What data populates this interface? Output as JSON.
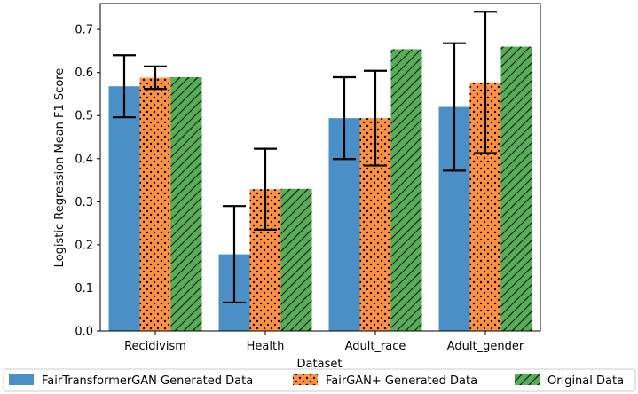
{
  "chart_data": {
    "type": "bar",
    "xlabel": "Dataset",
    "ylabel": "Logistic Regression Mean F1 Score",
    "ylim": [
      0,
      0.76
    ],
    "yticks": [
      "0.0",
      "0.1",
      "0.2",
      "0.3",
      "0.4",
      "0.5",
      "0.6",
      "0.7"
    ],
    "categories": [
      "Recidivism",
      "Health",
      "Adult_race",
      "Adult_gender"
    ],
    "legend_position": "bottom",
    "series": [
      {
        "name": "FairTransformerGAN Generated Data",
        "color": "#4a90c6",
        "pattern": "none",
        "values": [
          0.568,
          0.178,
          0.494,
          0.52
        ],
        "err": [
          0.072,
          0.112,
          0.095,
          0.148
        ]
      },
      {
        "name": "FairGAN+ Generated Data",
        "color": "#ff9140",
        "pattern": "dots",
        "values": [
          0.588,
          0.329,
          0.494,
          0.577
        ],
        "err": [
          0.026,
          0.094,
          0.11,
          0.164
        ]
      },
      {
        "name": "Original Data",
        "color": "#55b055",
        "pattern": "hatch",
        "values": [
          0.589,
          0.33,
          0.654,
          0.66
        ],
        "err": [
          0,
          0,
          0,
          0
        ]
      }
    ]
  }
}
